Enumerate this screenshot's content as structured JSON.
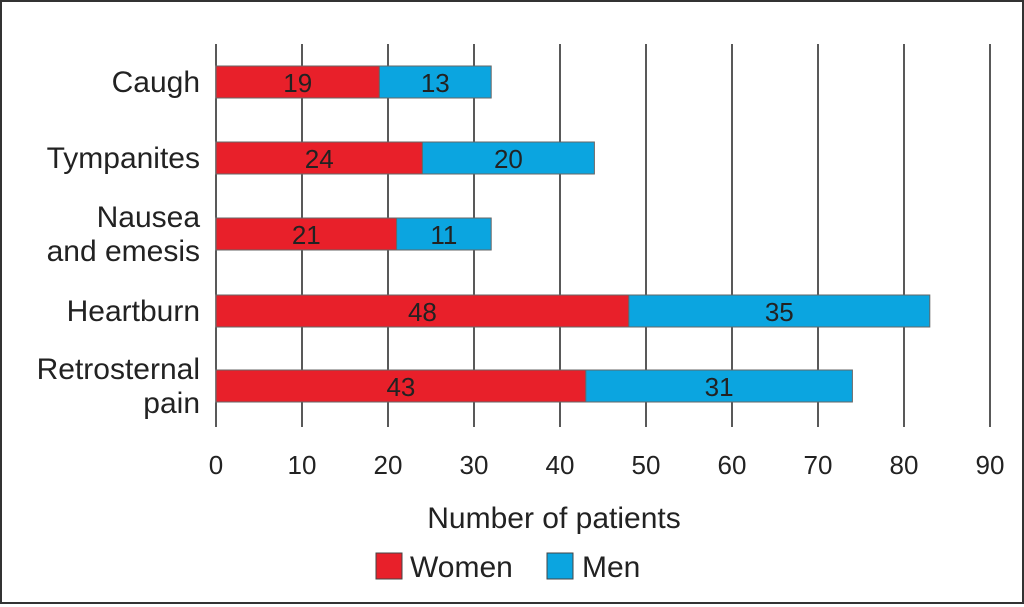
{
  "chart_data": {
    "type": "bar",
    "orientation": "horizontal",
    "stacked": true,
    "categories": [
      [
        "Caugh"
      ],
      [
        "Tympanites"
      ],
      [
        "Nausea",
        "and emesis"
      ],
      [
        "Heartburn"
      ],
      [
        "Retrosternal",
        "pain"
      ]
    ],
    "series": [
      {
        "name": "Women",
        "color": "#e8202a",
        "values": [
          19,
          24,
          21,
          48,
          43
        ]
      },
      {
        "name": "Men",
        "color": "#0ba5e0",
        "values": [
          13,
          20,
          11,
          35,
          31
        ]
      }
    ],
    "xlabel": "Number of patients",
    "xlim": [
      0,
      90
    ],
    "xticks": [
      "0",
      "10",
      "20",
      "30",
      "40",
      "50",
      "60",
      "70",
      "80",
      "90"
    ],
    "grid": "vertical",
    "legend": "bottom"
  }
}
